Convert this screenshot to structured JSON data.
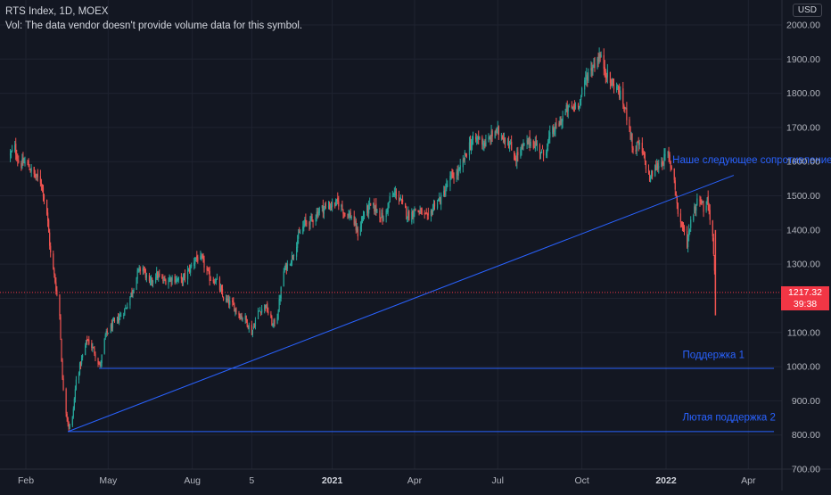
{
  "legend": {
    "symbol_line": "RTS Index, 1D, MOEX",
    "volume_note": "Vol: The data vendor doesn't provide volume data for this symbol."
  },
  "currency": "USD",
  "last_price": {
    "value": "1217.32",
    "countdown": "39:38"
  },
  "chart_data": {
    "type": "candlestick",
    "x_unit": "date",
    "y_ticks": [
      "2000.00",
      "1900.00",
      "1800.00",
      "1700.00",
      "1600.00",
      "1500.00",
      "1400.00",
      "1300.00",
      "1200.00",
      "1100.00",
      "1000.00",
      "900.00",
      "800.00",
      "700.00"
    ],
    "ylim": [
      700,
      2010
    ],
    "x_ticks": [
      {
        "label": "Feb",
        "date": "2020-02-01",
        "bold": false
      },
      {
        "label": "May",
        "date": "2020-05-01",
        "bold": false
      },
      {
        "label": "Aug",
        "date": "2020-08-01",
        "bold": false
      },
      {
        "label": "5",
        "date": "2020-10-05",
        "bold": false
      },
      {
        "label": "2021",
        "date": "2021-01-01",
        "bold": true
      },
      {
        "label": "Apr",
        "date": "2021-04-01",
        "bold": false
      },
      {
        "label": "Jul",
        "date": "2021-07-01",
        "bold": false
      },
      {
        "label": "Oct",
        "date": "2021-10-01",
        "bold": false
      },
      {
        "label": "2022",
        "date": "2022-01-01",
        "bold": true
      },
      {
        "label": "Apr",
        "date": "2022-04-01",
        "bold": false
      }
    ],
    "xlim": [
      "2020-01-15",
      "2022-05-01"
    ],
    "close_path": [
      [
        "2020-01-15",
        1620
      ],
      [
        "2020-01-20",
        1640
      ],
      [
        "2020-01-25",
        1590
      ],
      [
        "2020-02-01",
        1600
      ],
      [
        "2020-02-10",
        1560
      ],
      [
        "2020-02-18",
        1540
      ],
      [
        "2020-02-24",
        1450
      ],
      [
        "2020-02-28",
        1330
      ],
      [
        "2020-03-04",
        1250
      ],
      [
        "2020-03-09",
        1150
      ],
      [
        "2020-03-12",
        960
      ],
      [
        "2020-03-16",
        870
      ],
      [
        "2020-03-19",
        820
      ],
      [
        "2020-03-23",
        850
      ],
      [
        "2020-03-27",
        960
      ],
      [
        "2020-04-01",
        1010
      ],
      [
        "2020-04-08",
        1080
      ],
      [
        "2020-04-15",
        1050
      ],
      [
        "2020-04-22",
        1000
      ],
      [
        "2020-04-28",
        1090
      ],
      [
        "2020-05-05",
        1120
      ],
      [
        "2020-05-12",
        1140
      ],
      [
        "2020-05-20",
        1170
      ],
      [
        "2020-05-27",
        1220
      ],
      [
        "2020-06-03",
        1280
      ],
      [
        "2020-06-08",
        1290
      ],
      [
        "2020-06-15",
        1240
      ],
      [
        "2020-06-22",
        1270
      ],
      [
        "2020-07-01",
        1250
      ],
      [
        "2020-07-10",
        1260
      ],
      [
        "2020-07-20",
        1250
      ],
      [
        "2020-07-28",
        1280
      ],
      [
        "2020-08-05",
        1320
      ],
      [
        "2020-08-12",
        1310
      ],
      [
        "2020-08-20",
        1260
      ],
      [
        "2020-08-28",
        1250
      ],
      [
        "2020-09-04",
        1200
      ],
      [
        "2020-09-14",
        1180
      ],
      [
        "2020-09-22",
        1150
      ],
      [
        "2020-09-28",
        1140
      ],
      [
        "2020-10-05",
        1100
      ],
      [
        "2020-10-12",
        1160
      ],
      [
        "2020-10-20",
        1180
      ],
      [
        "2020-10-28",
        1120
      ],
      [
        "2020-11-02",
        1150
      ],
      [
        "2020-11-09",
        1280
      ],
      [
        "2020-11-18",
        1320
      ],
      [
        "2020-11-25",
        1380
      ],
      [
        "2020-12-02",
        1420
      ],
      [
        "2020-12-10",
        1430
      ],
      [
        "2020-12-18",
        1460
      ],
      [
        "2020-12-28",
        1470
      ],
      [
        "2021-01-08",
        1480
      ],
      [
        "2021-01-15",
        1450
      ],
      [
        "2021-01-22",
        1440
      ],
      [
        "2021-01-29",
        1390
      ],
      [
        "2021-02-05",
        1450
      ],
      [
        "2021-02-12",
        1470
      ],
      [
        "2021-02-19",
        1460
      ],
      [
        "2021-02-26",
        1430
      ],
      [
        "2021-03-05",
        1490
      ],
      [
        "2021-03-12",
        1510
      ],
      [
        "2021-03-19",
        1470
      ],
      [
        "2021-03-26",
        1440
      ],
      [
        "2021-04-02",
        1460
      ],
      [
        "2021-04-09",
        1450
      ],
      [
        "2021-04-16",
        1430
      ],
      [
        "2021-04-23",
        1480
      ],
      [
        "2021-04-30",
        1490
      ],
      [
        "2021-05-10",
        1550
      ],
      [
        "2021-05-20",
        1570
      ],
      [
        "2021-05-31",
        1650
      ],
      [
        "2021-06-10",
        1670
      ],
      [
        "2021-06-18",
        1650
      ],
      [
        "2021-06-28",
        1690
      ],
      [
        "2021-07-05",
        1680
      ],
      [
        "2021-07-12",
        1660
      ],
      [
        "2021-07-20",
        1610
      ],
      [
        "2021-07-28",
        1640
      ],
      [
        "2021-08-05",
        1660
      ],
      [
        "2021-08-12",
        1650
      ],
      [
        "2021-08-20",
        1620
      ],
      [
        "2021-08-28",
        1680
      ],
      [
        "2021-09-06",
        1710
      ],
      [
        "2021-09-14",
        1750
      ],
      [
        "2021-09-22",
        1760
      ],
      [
        "2021-09-29",
        1780
      ],
      [
        "2021-10-06",
        1850
      ],
      [
        "2021-10-13",
        1880
      ],
      [
        "2021-10-20",
        1910
      ],
      [
        "2021-10-25",
        1880
      ],
      [
        "2021-11-01",
        1830
      ],
      [
        "2021-11-08",
        1820
      ],
      [
        "2021-11-15",
        1770
      ],
      [
        "2021-11-22",
        1710
      ],
      [
        "2021-11-26",
        1630
      ],
      [
        "2021-12-02",
        1650
      ],
      [
        "2021-12-08",
        1610
      ],
      [
        "2021-12-14",
        1550
      ],
      [
        "2021-12-20",
        1580
      ],
      [
        "2021-12-27",
        1600
      ],
      [
        "2022-01-03",
        1620
      ],
      [
        "2022-01-10",
        1550
      ],
      [
        "2022-01-14",
        1450
      ],
      [
        "2022-01-20",
        1400
      ],
      [
        "2022-01-24",
        1360
      ],
      [
        "2022-01-28",
        1430
      ],
      [
        "2022-02-02",
        1470
      ],
      [
        "2022-02-07",
        1500
      ],
      [
        "2022-02-11",
        1460
      ],
      [
        "2022-02-15",
        1490
      ],
      [
        "2022-02-18",
        1440
      ],
      [
        "2022-02-21",
        1380
      ],
      [
        "2022-02-24",
        1217
      ]
    ],
    "lines": [
      {
        "name": "resistance",
        "from": [
          "2020-03-18",
          810
        ],
        "to": [
          "2022-03-16",
          1560
        ],
        "label": "Наше следующее сопротивление",
        "label_at": [
          "2022-01-08",
          1595
        ]
      },
      {
        "name": "support-1",
        "from": [
          "2020-04-21",
          995
        ],
        "to": [
          "2022-04-29",
          995
        ],
        "label": "Поддержка 1",
        "label_at": [
          "2022-01-19",
          1025
        ]
      },
      {
        "name": "support-2",
        "from": [
          "2020-03-18",
          810
        ],
        "to": [
          "2022-04-29",
          810
        ],
        "label": "Лютая поддержка 2",
        "label_at": [
          "2022-01-19",
          842
        ]
      }
    ],
    "last_price": 1217.32,
    "grid": true,
    "colors": {
      "up": "#26a69a",
      "down": "#ef5350",
      "line": "#2962ff",
      "background": "#131722",
      "grid": "#1f2330",
      "last_price": "#f23645"
    }
  }
}
